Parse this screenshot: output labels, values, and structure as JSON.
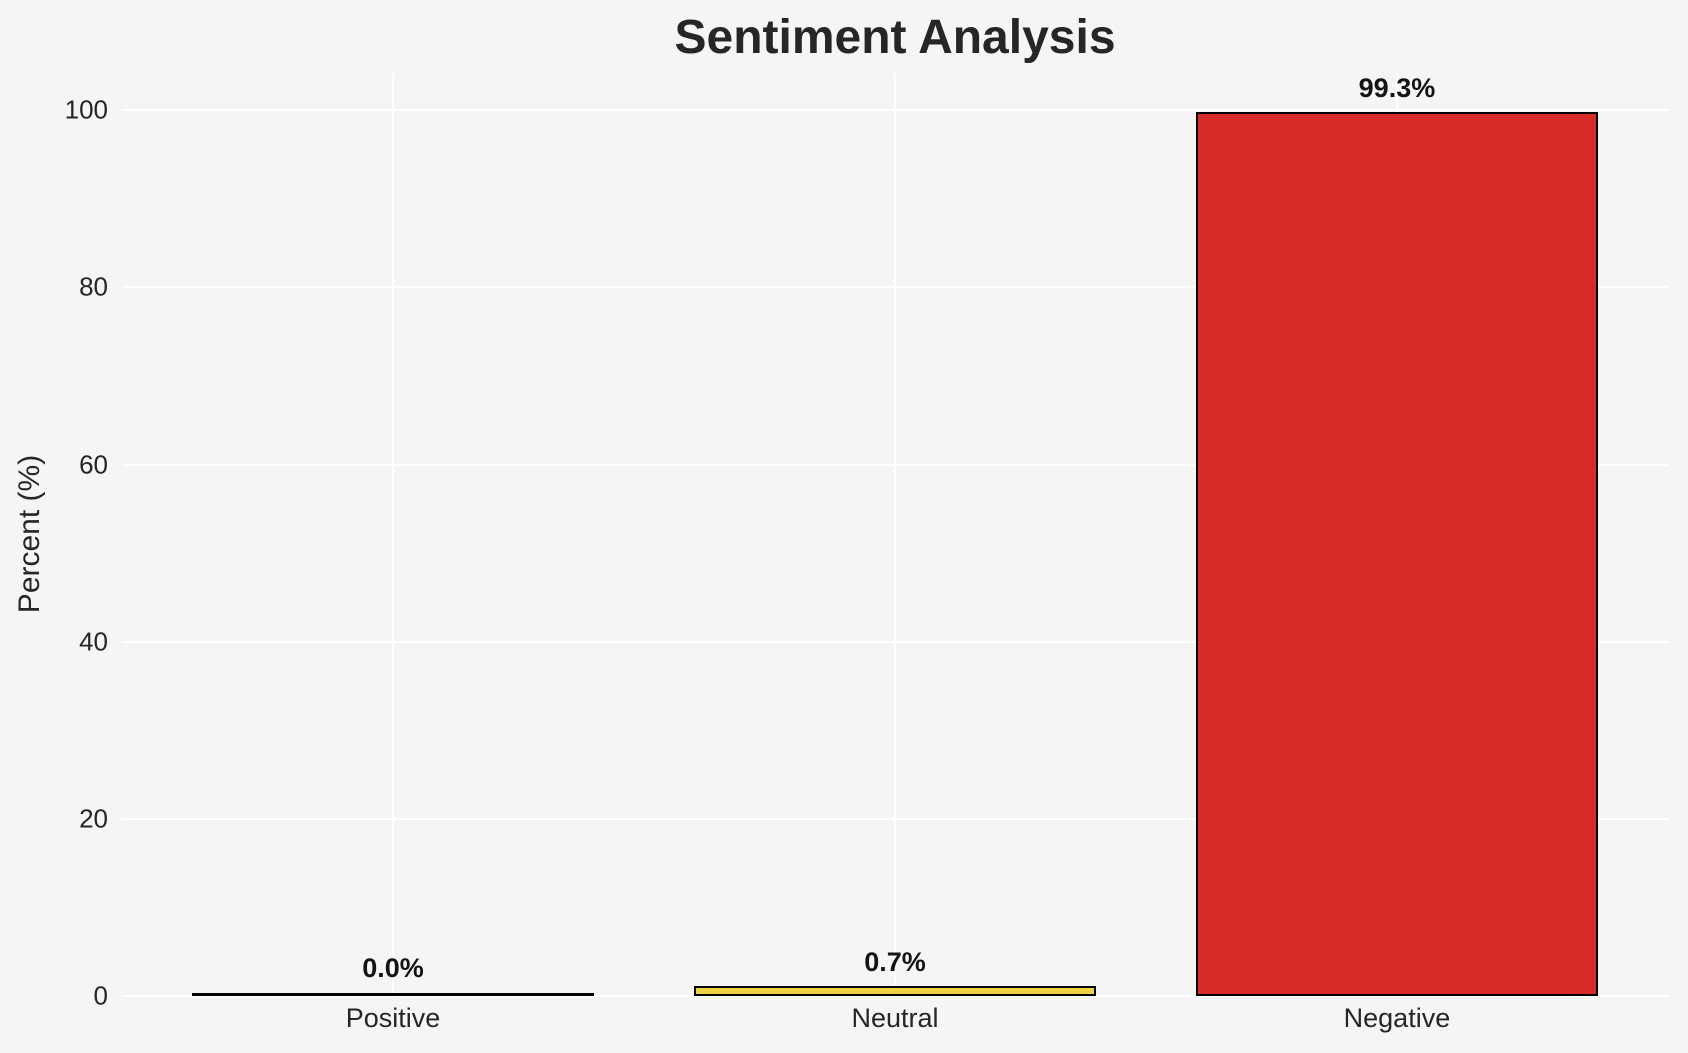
{
  "chart_data": {
    "type": "bar",
    "title": "Sentiment Analysis",
    "xlabel": "",
    "ylabel": "Percent (%)",
    "categories": [
      "Positive",
      "Neutral",
      "Negative"
    ],
    "values": [
      0.0,
      0.7,
      99.3
    ],
    "value_labels": [
      "0.0%",
      "0.7%",
      "99.3%"
    ],
    "bar_colors": [
      null,
      "#f0d343",
      "#d62b27"
    ],
    "bar_edge_color": "#000000",
    "yticks": [
      0,
      20,
      40,
      60,
      80,
      100
    ],
    "ylim": [
      0,
      104.2
    ],
    "xlim": [
      -0.54,
      2.54
    ],
    "bar_width": 0.8,
    "grid": true,
    "grid_color": "#ffffff",
    "background_color": "#f5f5f6",
    "legend": "none"
  }
}
